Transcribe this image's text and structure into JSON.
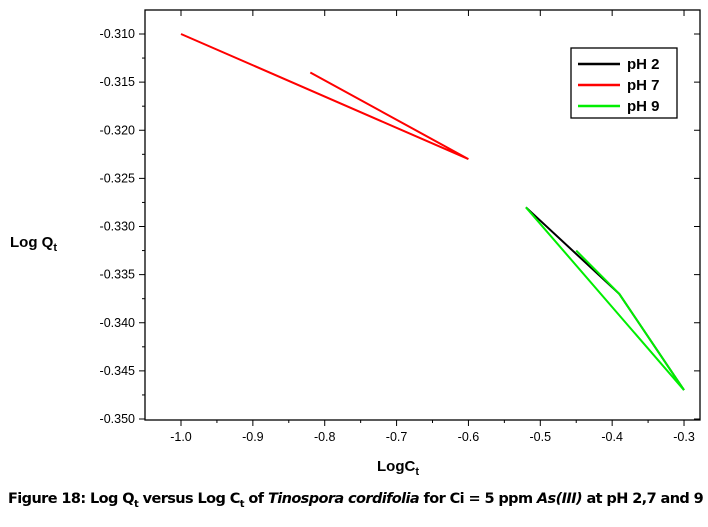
{
  "chart_data": {
    "type": "line",
    "title": "",
    "xlabel": "LogC",
    "xlabel_sub": "t",
    "ylabel": "Log Q",
    "ylabel_sub": "t",
    "xlim": [
      -1.05,
      -0.28
    ],
    "ylim": [
      -0.3505,
      -0.3075
    ],
    "xticks": [
      -1.0,
      -0.9,
      -0.8,
      -0.7,
      -0.6,
      -0.5,
      -0.4,
      -0.3
    ],
    "xtick_labels": [
      "-1.0",
      "-0.9",
      "-0.8",
      "-0.7",
      "-0.6",
      "-0.5",
      "-0.4",
      "-0.3"
    ],
    "yticks": [
      -0.31,
      -0.315,
      -0.32,
      -0.325,
      -0.33,
      -0.335,
      -0.34,
      -0.345,
      -0.35
    ],
    "ytick_labels": [
      "-0.310",
      "-0.315",
      "-0.320",
      "-0.325",
      "-0.330",
      "-0.335",
      "-0.340",
      "-0.345",
      "-0.350"
    ],
    "legend_position": "top-right",
    "series": [
      {
        "name": "pH 2",
        "color": "#000000",
        "x": [
          -0.52,
          -0.39,
          -0.3
        ],
        "y": [
          -0.328,
          -0.337,
          -0.347
        ]
      },
      {
        "name": "pH 7",
        "color": "#ff0000",
        "x": [
          -1.0,
          -0.6,
          -0.82
        ],
        "y": [
          -0.31,
          -0.323,
          -0.314
        ]
      },
      {
        "name": "pH 9",
        "color": "#00ee00",
        "x": [
          -0.45,
          -0.39,
          -0.3,
          -0.52
        ],
        "y": [
          -0.3325,
          -0.337,
          -0.347,
          -0.328
        ]
      }
    ]
  },
  "caption": {
    "prefix": "Figure 18: Log Q",
    "sub1": "t",
    "mid1": " versus Log C",
    "sub2": "t",
    "mid2": " of ",
    "species": "Tinospora cordifolia",
    "mid3": " for Ci = 5 ppm ",
    "ion": "As(III)",
    "suffix": " at pH 2,7 and 9"
  }
}
